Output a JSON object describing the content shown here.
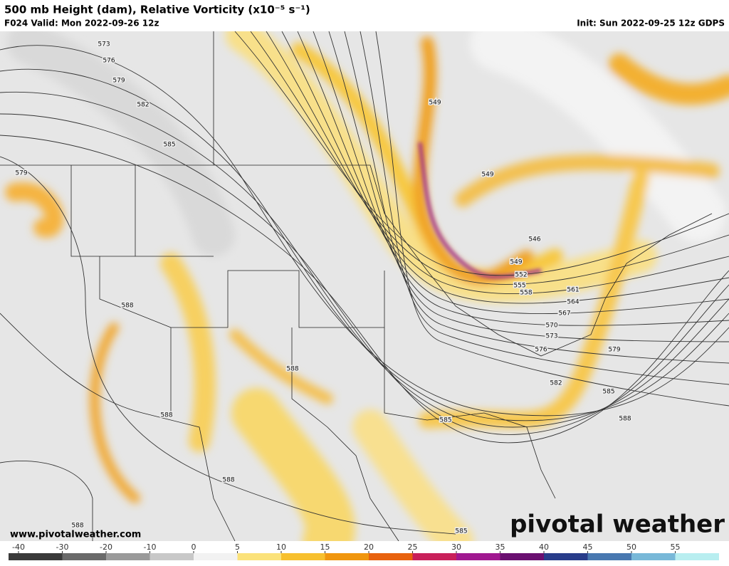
{
  "header": {
    "title": "500 mb Height (dam), Relative Vorticity (x10⁻⁵ s⁻¹)",
    "valid": "F024 Valid: Mon 2022-09-26 12z",
    "init": "Init: Sun 2022-09-25 12z GDPS"
  },
  "contour_labels": [
    "573",
    "576",
    "579",
    "582",
    "585",
    "579",
    "588",
    "549",
    "549",
    "546",
    "549",
    "552",
    "555",
    "558",
    "561",
    "564",
    "567",
    "570",
    "573",
    "576",
    "579",
    "582",
    "585",
    "588",
    "588",
    "585",
    "588",
    "588",
    "588",
    "585"
  ],
  "footer": {
    "url": "www.pivotalweather.com",
    "brand": "pivotal weather"
  },
  "colorbar": {
    "ticks": [
      -40,
      -30,
      -20,
      -10,
      0,
      5,
      10,
      15,
      20,
      25,
      30,
      35,
      40,
      45,
      50,
      55
    ]
  }
}
